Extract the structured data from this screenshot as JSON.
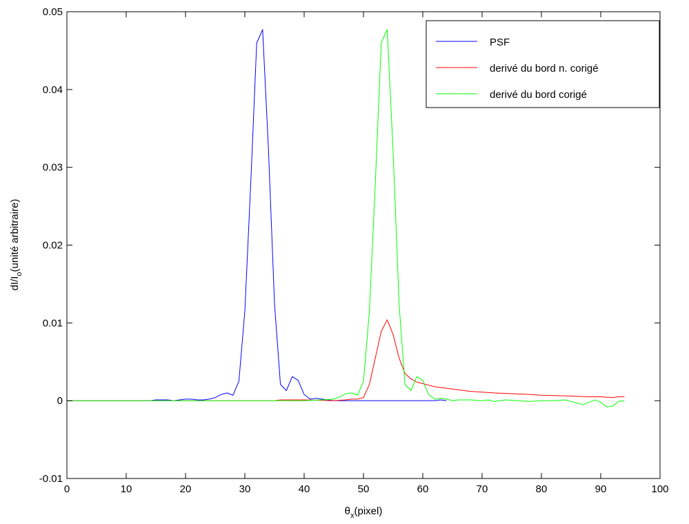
{
  "chart_data": {
    "type": "line",
    "title": "",
    "xlabel": {
      "base": "θ",
      "sub": "x",
      "rest": "(pixel)"
    },
    "ylabel": {
      "pre": "dI/I",
      "sub": "o",
      "rest": "(unité arbitraire)"
    },
    "xlim": [
      0,
      100
    ],
    "ylim": [
      -0.01,
      0.05
    ],
    "xticks": [
      0,
      10,
      20,
      30,
      40,
      50,
      60,
      70,
      80,
      90,
      100
    ],
    "xtick_labels": [
      "0",
      "10",
      "20",
      "30",
      "40",
      "50",
      "60",
      "70",
      "80",
      "90",
      "100"
    ],
    "yticks": [
      -0.01,
      0,
      0.01,
      0.02,
      0.03,
      0.04,
      0.05
    ],
    "ytick_labels": [
      "-0.01",
      "0",
      "0.01",
      "0.02",
      "0.03",
      "0.04",
      "0.05"
    ],
    "grid": false,
    "legend_position": "top-right",
    "series": [
      {
        "name": "PSF",
        "color": "#0000ff",
        "points": [
          [
            0,
            0
          ],
          [
            5,
            0
          ],
          [
            10,
            0
          ],
          [
            14,
            0
          ],
          [
            15,
            0.0001
          ],
          [
            16,
            0.0001
          ],
          [
            17,
            0.0001
          ],
          [
            18,
            0
          ],
          [
            19,
            0.0001
          ],
          [
            20,
            0.0002
          ],
          [
            21,
            0.0002
          ],
          [
            22,
            0.0001
          ],
          [
            23,
            0.0001
          ],
          [
            24,
            0.0002
          ],
          [
            25,
            0.0004
          ],
          [
            26,
            0.0008
          ],
          [
            27,
            0.001
          ],
          [
            28,
            0.0007
          ],
          [
            29,
            0.0025
          ],
          [
            30,
            0.0115
          ],
          [
            31,
            0.028
          ],
          [
            32,
            0.046
          ],
          [
            33,
            0.0477
          ],
          [
            34,
            0.032
          ],
          [
            35,
            0.0125
          ],
          [
            36,
            0.0021
          ],
          [
            37,
            0.0013
          ],
          [
            38,
            0.0031
          ],
          [
            39,
            0.0026
          ],
          [
            40,
            0.0008
          ],
          [
            41,
            0.0002
          ],
          [
            42,
            0.0003
          ],
          [
            43,
            0.0002
          ],
          [
            44,
            0.0001
          ],
          [
            45,
            0
          ],
          [
            48,
            0
          ],
          [
            55,
            0
          ],
          [
            62,
            0
          ],
          [
            63,
            0.0001
          ],
          [
            64,
            0
          ]
        ]
      },
      {
        "name": "derivé du bord n. corigé",
        "color": "#ff0000",
        "points": [
          [
            0,
            0
          ],
          [
            35,
            0
          ],
          [
            36,
            0.0001
          ],
          [
            40,
            0.0001
          ],
          [
            45,
            0
          ],
          [
            47,
            0.0001
          ],
          [
            48,
            0.0002
          ],
          [
            49,
            0.0002
          ],
          [
            50,
            0.0004
          ],
          [
            51,
            0.0021
          ],
          [
            52,
            0.0055
          ],
          [
            53,
            0.0089
          ],
          [
            54,
            0.0104
          ],
          [
            55,
            0.0085
          ],
          [
            56,
            0.0055
          ],
          [
            57,
            0.0035
          ],
          [
            58,
            0.0028
          ],
          [
            59,
            0.0024
          ],
          [
            60,
            0.0022
          ],
          [
            61,
            0.002
          ],
          [
            62,
            0.0018
          ],
          [
            63,
            0.0017
          ],
          [
            64,
            0.0016
          ],
          [
            66,
            0.0014
          ],
          [
            68,
            0.0012
          ],
          [
            70,
            0.0011
          ],
          [
            72,
            0.001
          ],
          [
            75,
            0.0009
          ],
          [
            78,
            0.0008
          ],
          [
            80,
            0.0007
          ],
          [
            85,
            0.0006
          ],
          [
            88,
            0.0005
          ],
          [
            90,
            0.0005
          ],
          [
            92,
            0.0004
          ],
          [
            93,
            0.0005
          ],
          [
            94,
            0.0005
          ]
        ]
      },
      {
        "name": "derivé du bord corigé",
        "color": "#00ff00",
        "points": [
          [
            0,
            0
          ],
          [
            40,
            0
          ],
          [
            43,
            0.0001
          ],
          [
            45,
            0.0002
          ],
          [
            46,
            0.0005
          ],
          [
            47,
            0.0009
          ],
          [
            48,
            0.001
          ],
          [
            49,
            0.0007
          ],
          [
            50,
            0.0025
          ],
          [
            51,
            0.0115
          ],
          [
            52,
            0.028
          ],
          [
            53,
            0.046
          ],
          [
            54,
            0.0477
          ],
          [
            55,
            0.032
          ],
          [
            56,
            0.0125
          ],
          [
            57,
            0.0021
          ],
          [
            58,
            0.0013
          ],
          [
            59,
            0.0031
          ],
          [
            60,
            0.0026
          ],
          [
            61,
            0.0008
          ],
          [
            62,
            0.0002
          ],
          [
            63,
            0.0003
          ],
          [
            64,
            0.0002
          ],
          [
            65,
            0
          ],
          [
            66,
            0.0001
          ],
          [
            68,
            0.0001
          ],
          [
            70,
            0
          ],
          [
            71,
            0.0001
          ],
          [
            72,
            -0.0001
          ],
          [
            74,
            0.0001
          ],
          [
            76,
            0
          ],
          [
            78,
            -0.0001
          ],
          [
            80,
            0
          ],
          [
            82,
            0
          ],
          [
            84,
            0.0001
          ],
          [
            86,
            -0.0003
          ],
          [
            87,
            -0.0005
          ],
          [
            88,
            -0.0002
          ],
          [
            89,
            0.0001
          ],
          [
            90,
            -0.0002
          ],
          [
            91,
            -0.0008
          ],
          [
            92,
            -0.0007
          ],
          [
            93,
            -0.0001
          ],
          [
            94,
            0
          ]
        ]
      }
    ]
  }
}
